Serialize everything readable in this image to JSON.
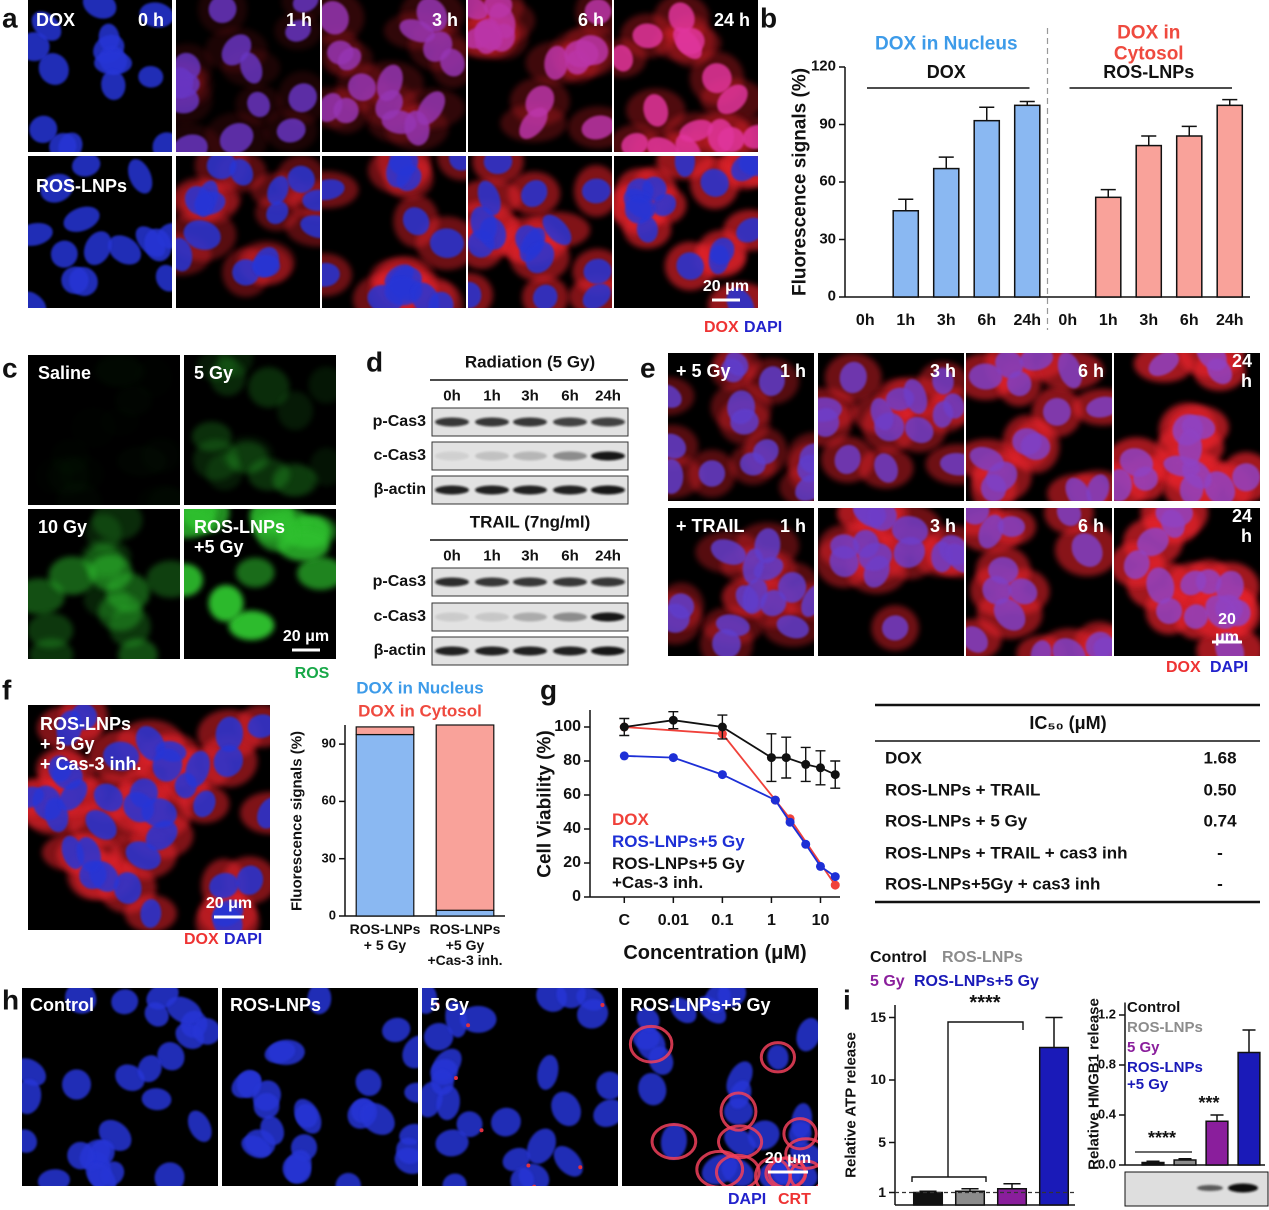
{
  "panel_labels": [
    "a",
    "b",
    "c",
    "d",
    "e",
    "f",
    "g",
    "h",
    "i"
  ],
  "panel_a": {
    "rows": [
      "DOX",
      "ROS-LNPs"
    ],
    "times": [
      "0 h",
      "1 h",
      "3 h",
      "6 h",
      "24 h"
    ],
    "scale_bar": "20 μm",
    "stain_legend": [
      "DOX",
      "DAPI"
    ]
  },
  "panel_c": {
    "labels": [
      "Saline",
      "5 Gy",
      "10 Gy",
      "ROS-LNPs\n+5 Gy"
    ],
    "scale_bar": "20 μm",
    "stain_legend": "ROS"
  },
  "panel_d": {
    "blots": [
      {
        "title": "Radiation (5 Gy)",
        "lanes": [
          "0h",
          "1h",
          "3h",
          "6h",
          "24h"
        ],
        "rows": [
          "p-Cas3",
          "c-Cas3",
          "β-actin"
        ]
      },
      {
        "title": "TRAIL (7ng/ml)",
        "lanes": [
          "0h",
          "1h",
          "3h",
          "6h",
          "24h"
        ],
        "rows": [
          "p-Cas3",
          "c-Cas3",
          "β-actin"
        ]
      }
    ]
  },
  "panel_e": {
    "rows": [
      "+ 5 Gy",
      "+ TRAIL"
    ],
    "times": [
      "1 h",
      "3 h",
      "6 h",
      "24 h"
    ],
    "scale_bar": "20 μm",
    "stain_legend": [
      "DOX",
      "DAPI"
    ]
  },
  "panel_f_image": {
    "label": "ROS-LNPs\n+ 5 Gy\n+ Cas-3 inh.",
    "scale_bar": "20 μm",
    "stain_legend": [
      "DOX",
      "DAPI"
    ]
  },
  "panel_g_table": {
    "header": "IC₅₀ (μM)",
    "rows": [
      [
        "DOX",
        "1.68"
      ],
      [
        "ROS-LNPs + TRAIL",
        "0.50"
      ],
      [
        "ROS-LNPs + 5 Gy",
        "0.74"
      ],
      [
        "ROS-LNPs + TRAIL + cas3 inh",
        "-"
      ],
      [
        "ROS-LNPs+5Gy + cas3 inh",
        "-"
      ]
    ]
  },
  "panel_h": {
    "labels": [
      "Control",
      "ROS-LNPs",
      "5 Gy",
      "ROS-LNPs+5 Gy"
    ],
    "scale_bar": "20 μm",
    "stain_legend": [
      "DAPI",
      "CRT"
    ]
  },
  "chart_data": [
    {
      "type": "bar",
      "categories": [
        "0h",
        "1h",
        "3h",
        "6h",
        "24h",
        "0h",
        "1h",
        "3h",
        "6h",
        "24h"
      ],
      "groups": [
        "DOX",
        "ROS-LNPs"
      ],
      "series": [
        {
          "name": "DOX in Nucleus",
          "color": "#8ab8f2",
          "label_color": "#3d9be9",
          "values": [
            0,
            45,
            67,
            92,
            100,
            null,
            null,
            null,
            null,
            null
          ],
          "errors": [
            null,
            6,
            6,
            7,
            2,
            null,
            null,
            null,
            null,
            null
          ]
        },
        {
          "name": "DOX in Cytosol",
          "color": "#f9a29a",
          "label_color": "#ef4a3f",
          "values": [
            null,
            null,
            null,
            null,
            null,
            0,
            52,
            79,
            84,
            100
          ],
          "errors": [
            null,
            null,
            null,
            null,
            null,
            null,
            4,
            5,
            5,
            3
          ]
        }
      ],
      "ylabel": "Fluorescence signals (%)",
      "ylim": [
        0,
        120
      ],
      "yticks": [
        0,
        30,
        60,
        90,
        120
      ]
    },
    {
      "type": "stacked_bar",
      "categories": [
        "ROS-LNPs\n+ 5 Gy",
        "ROS-LNPs\n+5 Gy\n+Cas-3 inh."
      ],
      "series": [
        {
          "name": "DOX in Nucleus",
          "color": "#8ab8f2",
          "label_color": "#3d9be9",
          "values": [
            95,
            3
          ],
          "errors": [
            2,
            1
          ]
        },
        {
          "name": "DOX in Cytosol",
          "color": "#f9a29a",
          "label_color": "#ef4a3f",
          "values": [
            4,
            97
          ]
        }
      ],
      "ylabel": "Fluorescence signals (%)",
      "ylim": [
        0,
        100
      ],
      "yticks": [
        0,
        30,
        60,
        90
      ]
    },
    {
      "type": "scatter",
      "lines": true,
      "xscale": "log",
      "xlabel": "Concentration (μM)",
      "ylabel": "Cell Viability (%)",
      "xlim": [
        0.0002,
        25
      ],
      "xticks": [
        {
          "value": 0.001,
          "label": "C"
        },
        0.01,
        0.1,
        1,
        10
      ],
      "ylim": [
        0,
        110
      ],
      "yticks": [
        0,
        20,
        40,
        60,
        80,
        100
      ],
      "series": [
        {
          "name": "DOX",
          "color": "#f0413a",
          "x": [
            0.001,
            0.1,
            1.2,
            2.4,
            20
          ],
          "values": [
            100,
            96,
            57,
            46,
            7
          ]
        },
        {
          "name": "ROS-LNPs+5 Gy",
          "color": "#1d2fd6",
          "x": [
            0.001,
            0.01,
            0.1,
            1.2,
            2.4,
            5,
            10,
            20
          ],
          "values": [
            83,
            82,
            72,
            57,
            44,
            31,
            18,
            12
          ]
        },
        {
          "name": "ROS-LNPs+5 Gy\n+Cas-3 inh.",
          "color": "#111111",
          "x": [
            0.001,
            0.01,
            0.1,
            1,
            2,
            5,
            10,
            20
          ],
          "values": [
            100,
            104,
            100,
            82,
            82,
            78,
            76,
            72
          ],
          "errors": [
            5,
            5,
            7,
            14,
            12,
            10,
            10,
            8
          ]
        }
      ]
    },
    {
      "type": "bar",
      "categories": [
        null
      ],
      "series": [
        {
          "name": "Control",
          "color": "#111111",
          "values": [
            1.0
          ],
          "errors": [
            0.1
          ]
        },
        {
          "name": "ROS-LNPs",
          "color": "#8c8c8c",
          "values": [
            1.1
          ],
          "errors": [
            0.2
          ]
        },
        {
          "name": "5 Gy",
          "color": "#8a1e9c",
          "values": [
            1.3
          ],
          "errors": [
            0.4
          ]
        },
        {
          "name": "ROS-LNPs+5 Gy",
          "color": "#1a1ab8",
          "values": [
            12.6
          ],
          "errors": [
            2.4
          ]
        }
      ],
      "ylabel": "Relative ATP release",
      "ylim": [
        0,
        16
      ],
      "yticks": [
        1,
        5,
        10,
        15
      ],
      "hline": 1,
      "annotations": [
        "****"
      ]
    },
    {
      "type": "bar",
      "categories": [
        null
      ],
      "series": [
        {
          "name": "Control",
          "color": "#111111",
          "values": [
            0.02
          ],
          "errors": [
            0.01
          ]
        },
        {
          "name": "ROS-LNPs",
          "color": "#8c8c8c",
          "values": [
            0.04
          ],
          "errors": [
            0.01
          ]
        },
        {
          "name": "5 Gy",
          "color": "#8a1e9c",
          "values": [
            0.35
          ],
          "errors": [
            0.05
          ]
        },
        {
          "name": "ROS-LNPs\n+5 Gy",
          "color": "#1a1ab8",
          "values": [
            0.9
          ],
          "errors": [
            0.18
          ]
        }
      ],
      "ylabel": "Relative HMGB1 release",
      "ylim": [
        0,
        1.3
      ],
      "yticks": [
        {
          "value": 0,
          "label": "0.0"
        },
        0.4,
        0.8,
        1.2
      ],
      "annotations": [
        "****",
        "***"
      ]
    }
  ]
}
